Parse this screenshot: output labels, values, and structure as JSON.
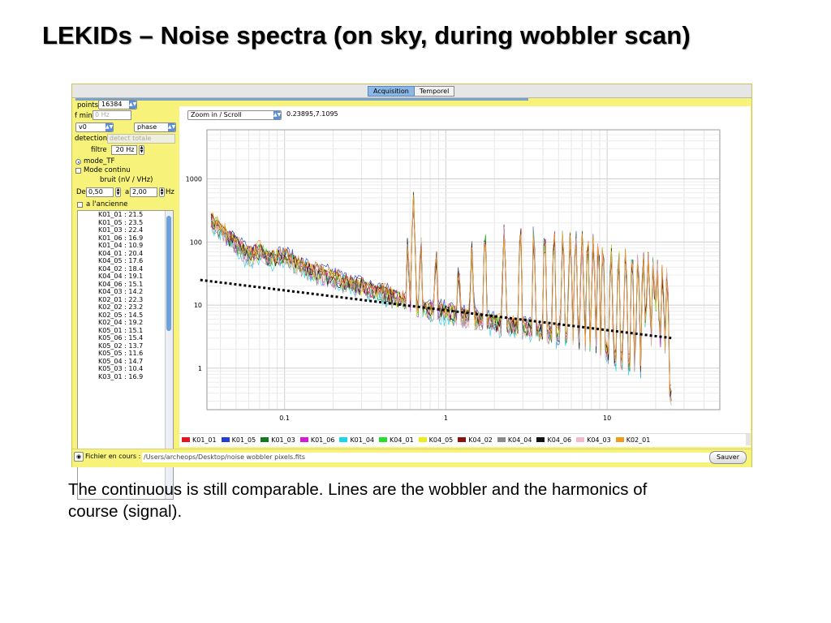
{
  "slide": {
    "title": "LEKIDs – Noise spectra (on sky, during wobbler scan)",
    "caption": "The continuous is still comparable. Lines are the wobbler and the harmonics of course (signal)."
  },
  "app": {
    "tabs": [
      {
        "label": "Acquisition",
        "active": true
      },
      {
        "label": "Temporel",
        "active": false
      }
    ],
    "controls": {
      "points_label": "points",
      "points_value": "16384",
      "fmin_label": "f min",
      "fmin_placeholder": "0 Hz",
      "channel_value": "v0",
      "mode_value": "phase",
      "detection_label": "detection",
      "detection_value": "detect totale",
      "filtre_label": "filtre",
      "filtre_value": "20 Hz",
      "mode_tf_label": "mode_TF",
      "mode_continu_label": "Mode continu",
      "bruit_label": "bruit (nV / VHz)",
      "de_label": "De",
      "de_value": "0,50",
      "a_label": "a",
      "a_value": "2,00",
      "hz_label": "Hz",
      "ancienne_label": "a l'ancienne"
    },
    "detectors": [
      {
        "name": "K01_01",
        "value": "21.5"
      },
      {
        "name": "K01_05",
        "value": "23.5"
      },
      {
        "name": "K01_03",
        "value": "22.4"
      },
      {
        "name": "K01_06",
        "value": "16.9"
      },
      {
        "name": "K01_04",
        "value": "10.9"
      },
      {
        "name": "K04_01",
        "value": "20.4"
      },
      {
        "name": "K04_05",
        "value": "17.6"
      },
      {
        "name": "K04_02",
        "value": "18.4"
      },
      {
        "name": "K04_04",
        "value": "19.1"
      },
      {
        "name": "K04_06",
        "value": "15.1"
      },
      {
        "name": "K04_03",
        "value": "14.2"
      },
      {
        "name": "K02_01",
        "value": "22.3"
      },
      {
        "name": "K02_02",
        "value": "23.2"
      },
      {
        "name": "K02_05",
        "value": "14.5"
      },
      {
        "name": "K02_04",
        "value": "19.2"
      },
      {
        "name": "K05_01",
        "value": "15.1"
      },
      {
        "name": "K05_06",
        "value": "15.4"
      },
      {
        "name": "K05_02",
        "value": "13.7"
      },
      {
        "name": "K05_05",
        "value": "11.6"
      },
      {
        "name": "K05_04",
        "value": "14.7"
      },
      {
        "name": "K05_03",
        "value": "10.4"
      },
      {
        "name": "K03_01",
        "value": "16.9"
      }
    ],
    "plot": {
      "zoom_label": "Zoom in / Scroll",
      "coords": "0.23895,7.1095"
    },
    "file": {
      "label": "Fichier en cours :",
      "path": "/Users/archeops/Desktop/noise wobbler pixels.fits",
      "save_label": "Sauver"
    }
  },
  "chart_data": {
    "type": "line",
    "x_scale": "log",
    "y_scale": "log",
    "xlim": [
      0.033,
      50
    ],
    "ylim": [
      0.22,
      6000
    ],
    "x_ticks": [
      0.1,
      1,
      10
    ],
    "x_tick_labels": [
      "0.1",
      "1",
      "10"
    ],
    "y_ticks": [
      1,
      10,
      100,
      1000
    ],
    "y_tick_labels": [
      "1",
      "10",
      "100",
      "1000"
    ],
    "grid": true,
    "legend": "bottom",
    "series": [
      {
        "name": "K01_01",
        "color": "#e8141c",
        "scale": 1.05
      },
      {
        "name": "K01_05",
        "color": "#1f3fd6",
        "scale": 1.18
      },
      {
        "name": "K01_03",
        "color": "#137a1e",
        "scale": 1.0
      },
      {
        "name": "K01_06",
        "color": "#d818d8",
        "scale": 0.95
      },
      {
        "name": "K01_04",
        "color": "#19d6e8",
        "scale": 0.82
      },
      {
        "name": "K04_01",
        "color": "#23e02a",
        "scale": 1.02
      },
      {
        "name": "K04_05",
        "color": "#ecec1a",
        "scale": 0.97
      },
      {
        "name": "K04_02",
        "color": "#8c1010",
        "scale": 1.08
      },
      {
        "name": "K04_04",
        "color": "#8a8a8a",
        "scale": 0.9
      },
      {
        "name": "K04_06",
        "color": "#111111",
        "scale": 1.0
      },
      {
        "name": "K04_03",
        "color": "#f4b8c8",
        "scale": 0.93
      },
      {
        "name": "K02_01",
        "color": "#f49a1a",
        "scale": 1.12
      }
    ],
    "trend_line": {
      "x": [
        0.03,
        25
      ],
      "y": [
        25,
        3
      ],
      "style": "dotted"
    },
    "spectrum_shape": {
      "x": [
        0.035,
        0.04,
        0.05,
        0.06,
        0.07,
        0.08,
        0.1,
        0.13,
        0.16,
        0.2,
        0.25,
        0.3,
        0.4,
        0.5,
        0.58,
        0.7,
        0.9,
        1.2,
        1.6,
        2.2,
        3,
        4,
        6,
        8,
        10,
        14,
        18,
        22,
        25
      ],
      "y": [
        230,
        160,
        95,
        60,
        75,
        55,
        60,
        40,
        32,
        28,
        22,
        20,
        16,
        13,
        11,
        9,
        8.5,
        7,
        6,
        5,
        4.5,
        3.8,
        3.2,
        2.4,
        1.8,
        1.2,
        0.8,
        0.55,
        0.4
      ]
    },
    "peaks": {
      "x": [
        0.58,
        0.63,
        0.7,
        0.87,
        1.2,
        1.45,
        1.75,
        2.3,
        2.9,
        3.5,
        4.1,
        4.7,
        5.3,
        5.9,
        6.4,
        7.0,
        7.6,
        8.2,
        8.8,
        9.4,
        10.6,
        11.8,
        13.0,
        14.3,
        15.5,
        16.8,
        18.0,
        19.3,
        20.5,
        22.0,
        23.5
      ],
      "y": [
        130,
        700,
        140,
        90,
        60,
        100,
        190,
        210,
        220,
        210,
        185,
        190,
        175,
        170,
        170,
        160,
        150,
        140,
        130,
        110,
        100,
        95,
        90,
        85,
        80,
        75,
        70,
        65,
        55,
        50,
        45
      ]
    }
  }
}
